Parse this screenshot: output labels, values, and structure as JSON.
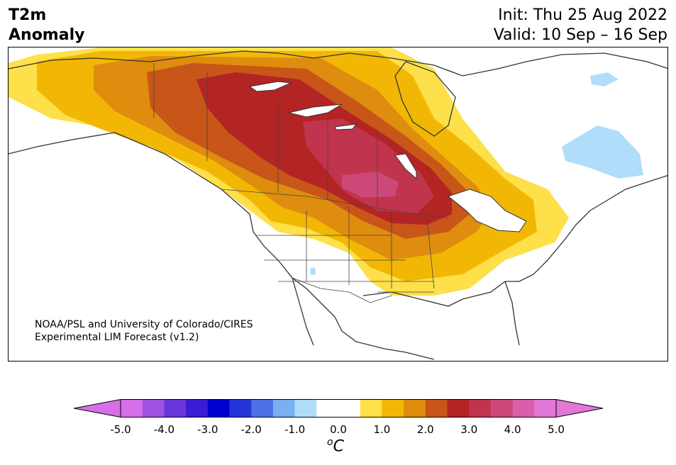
{
  "title": {
    "variable_line1": "T2m",
    "variable_line2": "Anomaly",
    "init": "Init: Thu 25 Aug 2022",
    "valid": "Valid: 10 Sep – 16 Sep"
  },
  "credit": {
    "line1": "NOAA/PSL and University of Colorado/CIRES",
    "line2": "Experimental LIM Forecast (v1.2)"
  },
  "colorbar": {
    "unit_base": "C",
    "unit_sup": "o",
    "ticks": [
      "-5.0",
      "-4.0",
      "-3.0",
      "-2.0",
      "-1.0",
      "0.0",
      "1.0",
      "2.0",
      "3.0",
      "4.0",
      "5.0"
    ],
    "colors": [
      "#d66fe8",
      "#9d52e0",
      "#6a35db",
      "#3a1cd3",
      "#0000cc",
      "#2536d9",
      "#4d70e6",
      "#78b0f0",
      "#b0defa",
      "#ffffff",
      "#ffffff",
      "#fde04a",
      "#f2b705",
      "#de8d0f",
      "#c75618",
      "#b32424",
      "#c0344d",
      "#cb4878",
      "#d95ea9",
      "#e377d7"
    ],
    "under_color": "#d66fe8",
    "over_color": "#e377d7"
  }
}
